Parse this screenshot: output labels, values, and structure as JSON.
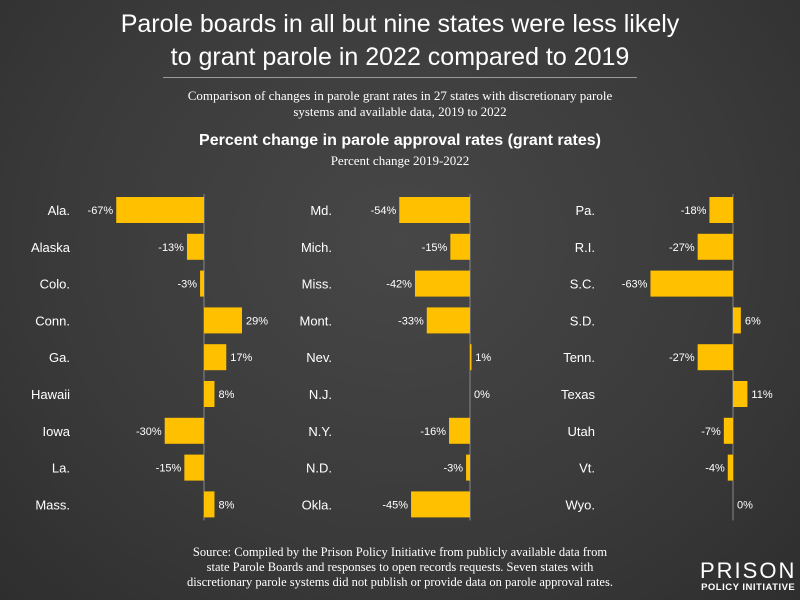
{
  "title_line1": "Parole boards in all but nine states were less likely",
  "title_line2": "to grant parole in 2022 compared to 2019",
  "subtitle_line1": "Comparison of changes in parole grant rates in 27 states with discretionary parole",
  "subtitle_line2": "systems and available data, 2019 to 2022",
  "source_line1": "Source: Compiled by the Prison Policy Initiative from publicly available data from",
  "source_line2": "state Parole Boards and responses to open records requests. Seven states with",
  "source_line3": "discretionary parole systems did not publish or provide data on parole approval rates.",
  "logo": {
    "line1": "PRISON",
    "line2": "POLICY INITIATIVE"
  },
  "colors": {
    "bar": "#FFC000",
    "background": "#3d3d3d",
    "text": "#ffffff"
  },
  "chart_data": {
    "type": "bar",
    "orientation": "horizontal",
    "title": "Percent change in parole approval rates (grant rates)",
    "subtitle": "Percent change 2019-2022",
    "unit": "%",
    "panels": [
      {
        "categories": [
          "Ala.",
          "Alaska",
          "Colo.",
          "Conn.",
          "Ga.",
          "Hawaii",
          "Iowa",
          "La.",
          "Mass."
        ],
        "values": [
          -67,
          -13,
          -3,
          29,
          17,
          8,
          -30,
          -15,
          8
        ]
      },
      {
        "categories": [
          "Md.",
          "Mich.",
          "Miss.",
          "Mont.",
          "Nev.",
          "N.J.",
          "N.Y.",
          "N.D.",
          "Okla."
        ],
        "values": [
          -54,
          -15,
          -42,
          -33,
          1,
          0,
          -16,
          -3,
          -45
        ]
      },
      {
        "categories": [
          "Pa.",
          "R.I.",
          "S.C.",
          "S.D.",
          "Tenn.",
          "Texas",
          "Utah",
          "Vt.",
          "Wyo."
        ],
        "values": [
          -18,
          -27,
          -63,
          6,
          -27,
          11,
          -7,
          -4,
          0
        ]
      }
    ]
  }
}
